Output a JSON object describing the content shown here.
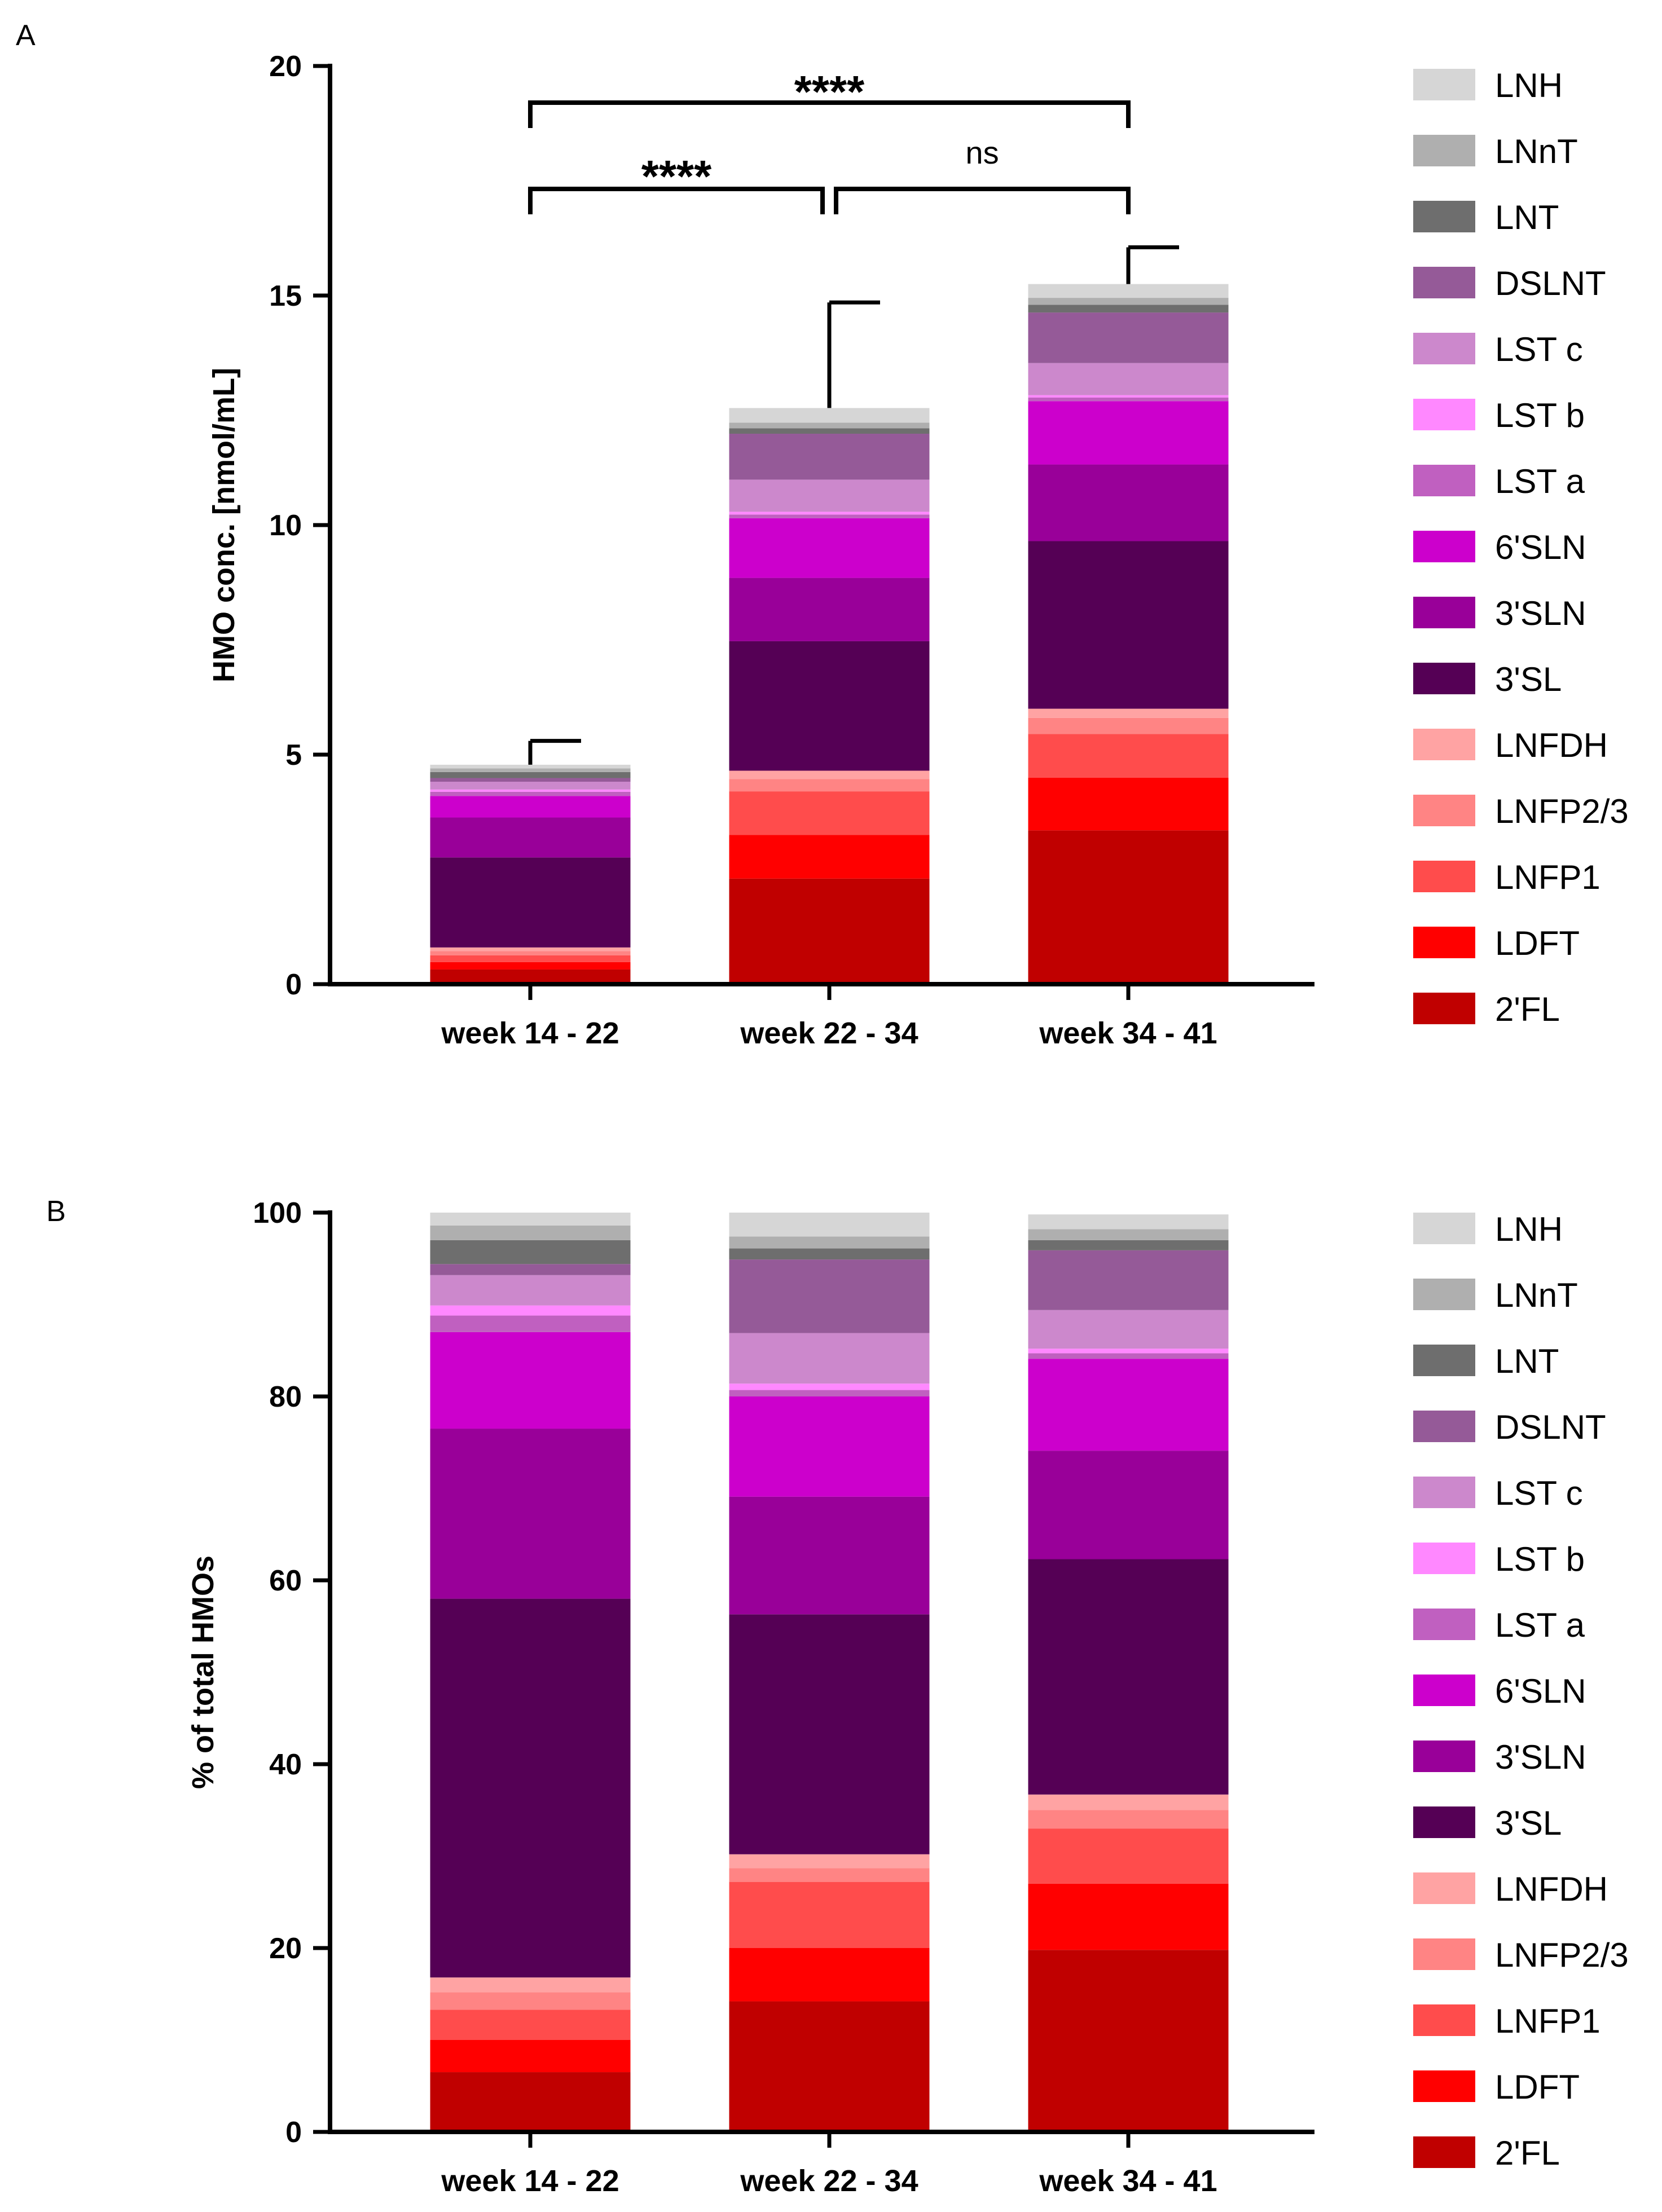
{
  "colors": {
    "LNH": "#d6d6d6",
    "LNnT": "#afafaf",
    "LNT": "#6e6e6e",
    "DSLNT": "#955a98",
    "LST c": "#cc88cc",
    "LST b": "#ff88ff",
    "LST a": "#c060c0",
    "6'SLN": "#cc00cc",
    "3'SLN": "#990099",
    "3'SL": "#550055",
    "LNFDH": "#ffa3a3",
    "LNFP2/3": "#ff8484",
    "LNFP1": "#ff4c4c",
    "LDFT": "#ff0000",
    "2'FL": "#c00000"
  },
  "chart_data": [
    {
      "panel_label": "A",
      "type": "bar",
      "stacked": true,
      "title": "",
      "xlabel": "",
      "ylabel": "HMO conc. [nmol/mL]",
      "ylim": [
        0,
        20
      ],
      "yticks": [
        0,
        5,
        10,
        15,
        20
      ],
      "categories": [
        "week 14 - 22",
        "week 22 - 34",
        "week 34 - 41"
      ],
      "legend_position": "right",
      "series": [
        {
          "name": "2'FL",
          "values": [
            0.32,
            2.3,
            3.35
          ]
        },
        {
          "name": "LDFT",
          "values": [
            0.16,
            0.95,
            1.15
          ]
        },
        {
          "name": "LNFP1",
          "values": [
            0.15,
            0.95,
            0.95
          ]
        },
        {
          "name": "LNFP2/3",
          "values": [
            0.09,
            0.27,
            0.35
          ]
        },
        {
          "name": "LNFDH",
          "values": [
            0.08,
            0.18,
            0.2
          ]
        },
        {
          "name": "3'SL",
          "values": [
            1.96,
            2.82,
            3.65
          ]
        },
        {
          "name": "3'SLN",
          "values": [
            0.87,
            1.38,
            1.67
          ]
        },
        {
          "name": "6'SLN",
          "values": [
            0.47,
            1.3,
            1.38
          ]
        },
        {
          "name": "LST a",
          "values": [
            0.09,
            0.08,
            0.08
          ]
        },
        {
          "name": "LST b",
          "values": [
            0.05,
            0.06,
            0.05
          ]
        },
        {
          "name": "LST c",
          "values": [
            0.17,
            0.7,
            0.7
          ]
        },
        {
          "name": "DSLNT",
          "values": [
            0.08,
            1.0,
            1.1
          ]
        },
        {
          "name": "LNT",
          "values": [
            0.13,
            0.12,
            0.17
          ]
        },
        {
          "name": "LNnT",
          "values": [
            0.08,
            0.12,
            0.15
          ]
        },
        {
          "name": "LNH",
          "values": [
            0.08,
            0.32,
            0.3
          ]
        }
      ],
      "error_bars": [
        5.3,
        14.85,
        16.05
      ],
      "significance": [
        {
          "from": 0,
          "to": 1,
          "label": "****"
        },
        {
          "from": 1,
          "to": 2,
          "label": "ns"
        },
        {
          "from": 0,
          "to": 2,
          "label": "****"
        }
      ]
    },
    {
      "panel_label": "B",
      "type": "bar",
      "stacked": true,
      "title": "",
      "xlabel": "",
      "ylabel": "% of total HMOs",
      "ylim": [
        0,
        100
      ],
      "yticks": [
        0,
        20,
        40,
        60,
        80,
        100
      ],
      "categories": [
        "week 14 - 22",
        "week 22 - 34",
        "week 34 - 41"
      ],
      "legend_position": "right",
      "series": [
        {
          "name": "2'FL",
          "values": [
            6.5,
            14.2,
            19.8
          ]
        },
        {
          "name": "LDFT",
          "values": [
            3.5,
            5.8,
            7.2
          ]
        },
        {
          "name": "LNFP1",
          "values": [
            3.3,
            7.2,
            6.0
          ]
        },
        {
          "name": "LNFP2/3",
          "values": [
            1.9,
            1.5,
            2.0
          ]
        },
        {
          "name": "LNFDH",
          "values": [
            1.6,
            1.5,
            1.7
          ]
        },
        {
          "name": "3'SL",
          "values": [
            41.2,
            26.1,
            25.6
          ]
        },
        {
          "name": "3'SLN",
          "values": [
            18.5,
            12.8,
            11.8
          ]
        },
        {
          "name": "6'SLN",
          "values": [
            10.5,
            10.9,
            10.0
          ]
        },
        {
          "name": "LST a",
          "values": [
            1.8,
            0.7,
            0.6
          ]
        },
        {
          "name": "LST b",
          "values": [
            1.1,
            0.7,
            0.5
          ]
        },
        {
          "name": "LST c",
          "values": [
            3.3,
            5.5,
            4.2
          ]
        },
        {
          "name": "DSLNT",
          "values": [
            1.2,
            8.0,
            6.5
          ]
        },
        {
          "name": "LNT",
          "values": [
            2.6,
            1.2,
            1.1
          ]
        },
        {
          "name": "LNnT",
          "values": [
            1.6,
            1.3,
            1.2
          ]
        },
        {
          "name": "LNH",
          "values": [
            1.4,
            2.6,
            1.6
          ]
        }
      ]
    }
  ]
}
